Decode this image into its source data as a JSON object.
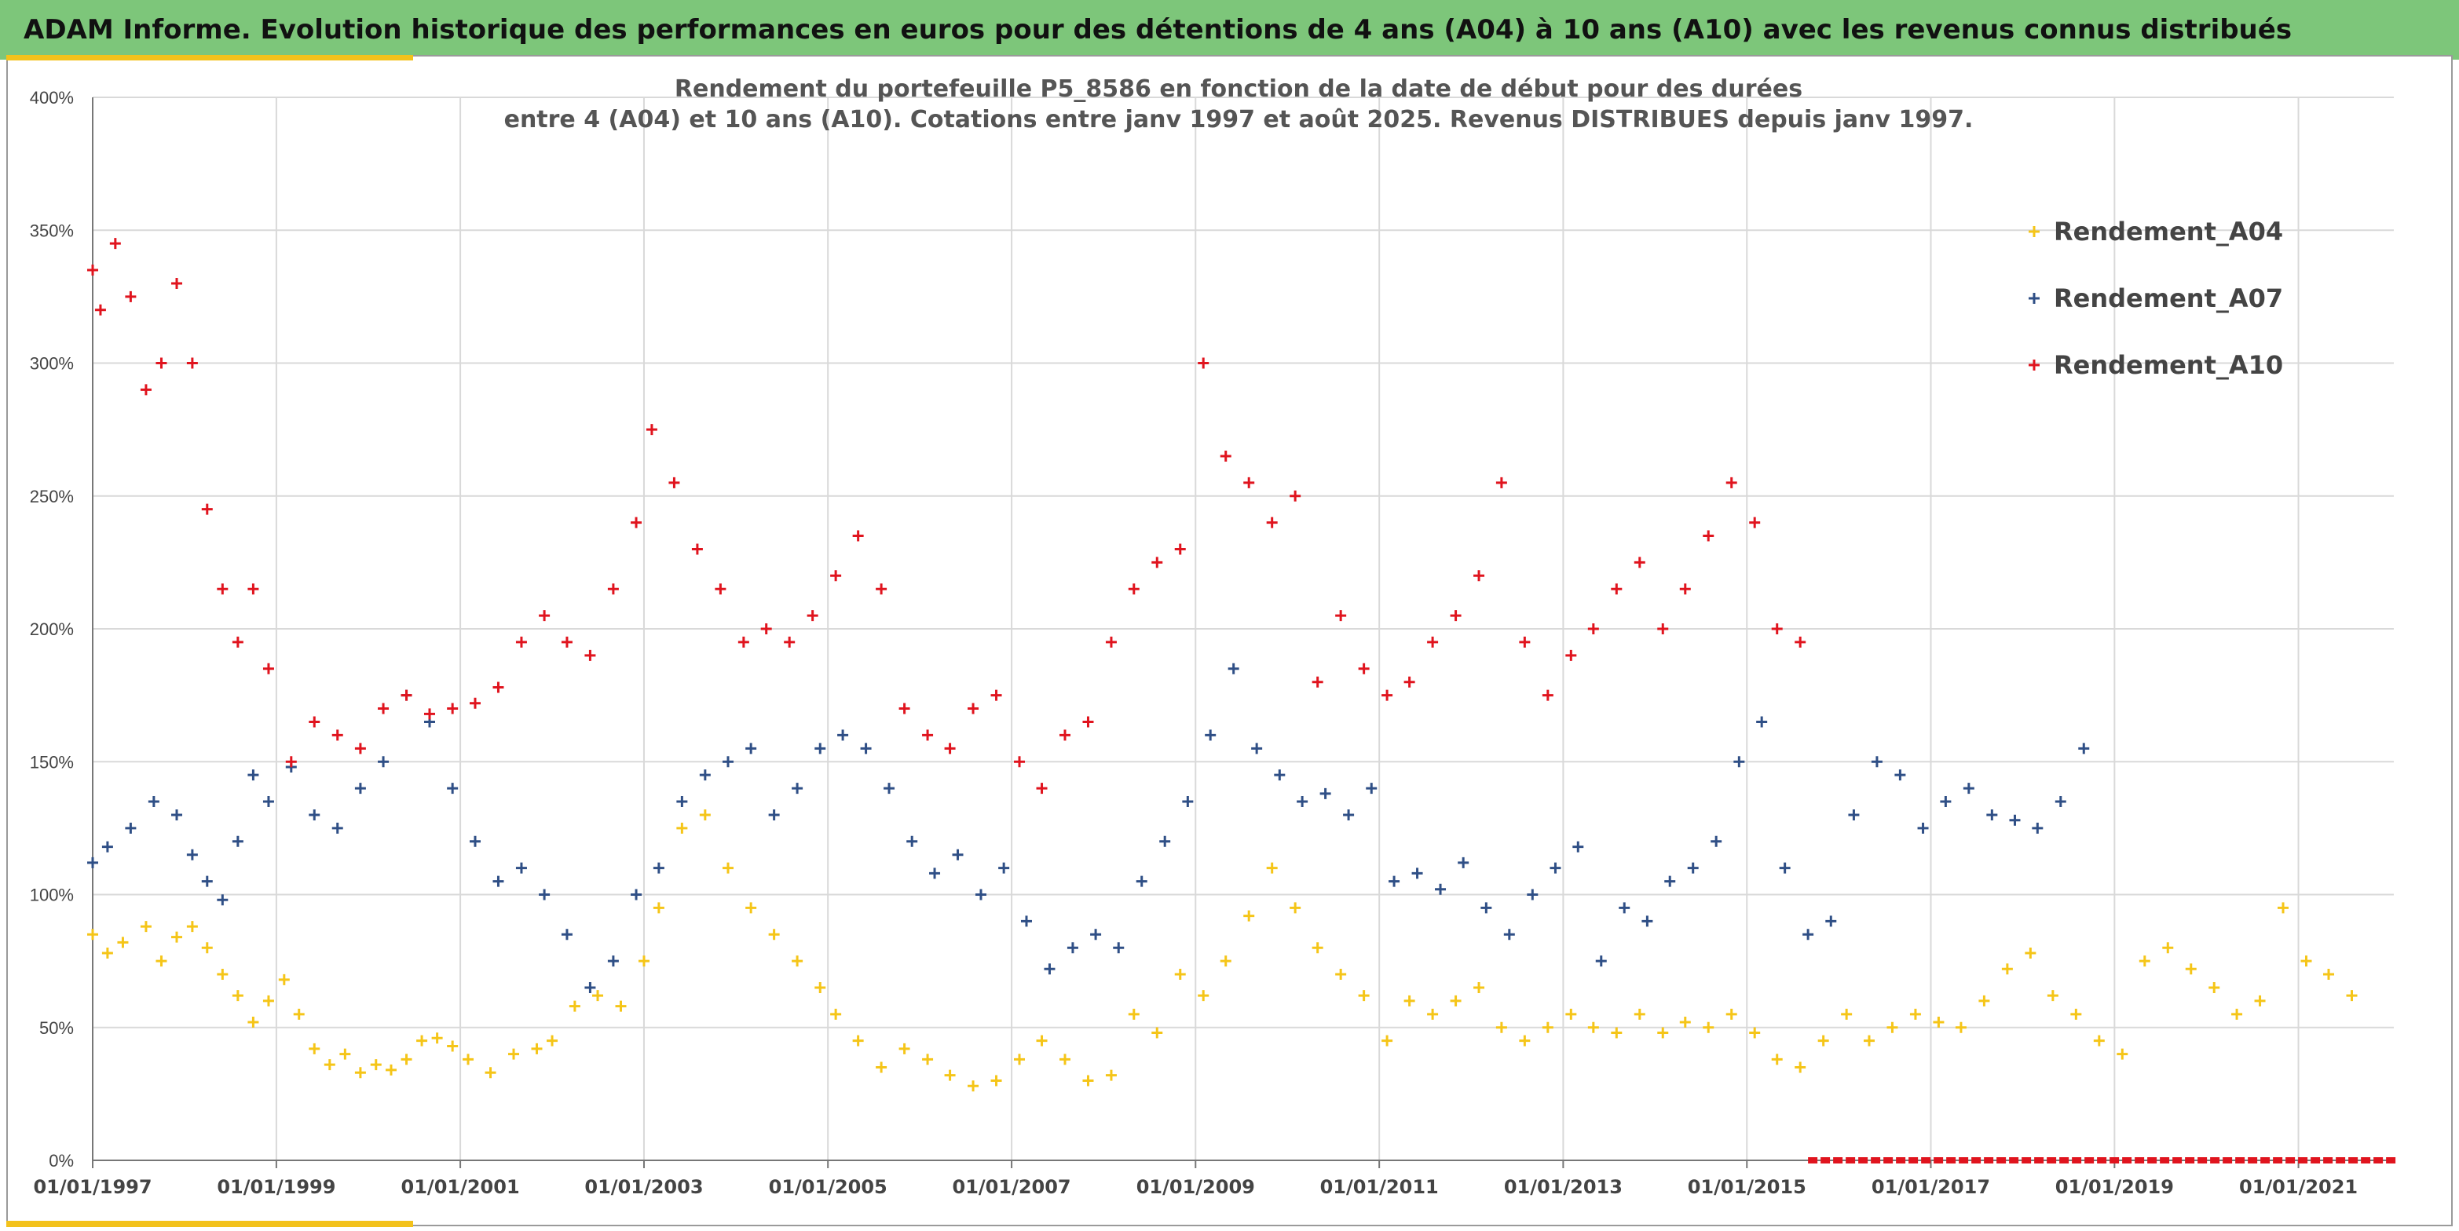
{
  "banner": {
    "title": "ADAM Informe. Evolution historique des performances en euros pour des détentions de 4 ans (A04) à 10 ans (A10) avec les revenus connus distribués"
  },
  "colors": {
    "banner": "#7dc67a",
    "accent": "#f3c21b",
    "A04": "#f5c518",
    "A07": "#2f4f86",
    "A10": "#e0141e",
    "grid": "#d9d9d9"
  },
  "chart_data": {
    "type": "scatter",
    "marker": "plus",
    "title_lines": [
      "Rendement du portefeuille P5_8586 en fonction de la date de début pour des durées",
      "entre 4 (A04) et 10 ans (A10). Cotations entre janv 1997 et août 2025. Revenus DISTRIBUES depuis janv 1997."
    ],
    "xlabel": "",
    "ylabel": "",
    "x_range": [
      "1997-01-01",
      "2022-01-15"
    ],
    "y_range": [
      0,
      400
    ],
    "y_ticks": [
      0,
      50,
      100,
      150,
      200,
      250,
      300,
      350,
      400
    ],
    "y_tick_labels": [
      "0%",
      "50%",
      "100%",
      "150%",
      "200%",
      "250%",
      "300%",
      "350%",
      "400%"
    ],
    "x_ticks": [
      "1997-01-01",
      "1999-01-01",
      "2001-01-01",
      "2003-01-01",
      "2005-01-01",
      "2007-01-01",
      "2009-01-01",
      "2011-01-01",
      "2013-01-01",
      "2015-01-01",
      "2017-01-01",
      "2019-01-01",
      "2021-01-01"
    ],
    "x_tick_labels": [
      "01/01/1997",
      "01/01/1999",
      "01/01/2001",
      "01/01/2003",
      "01/01/2005",
      "01/01/2007",
      "01/01/2009",
      "01/01/2011",
      "01/01/2013",
      "01/01/2015",
      "01/01/2017",
      "01/01/2019",
      "01/01/2021"
    ],
    "grid": true,
    "legend_position": "top-right",
    "series": [
      {
        "name": "Rendement_A04",
        "x": [
          "1997-01-01",
          "1997-03-01",
          "1997-05-01",
          "1997-08-01",
          "1997-10-01",
          "1997-12-01",
          "1998-02-01",
          "1998-04-01",
          "1998-06-01",
          "1998-08-01",
          "1998-10-01",
          "1998-12-01",
          "1999-02-01",
          "1999-04-01",
          "1999-06-01",
          "1999-08-01",
          "1999-10-01",
          "1999-12-01",
          "2000-02-01",
          "2000-04-01",
          "2000-06-01",
          "2000-08-01",
          "2000-10-01",
          "2000-12-01",
          "2001-02-01",
          "2001-05-01",
          "2001-08-01",
          "2001-11-01",
          "2002-01-01",
          "2002-04-01",
          "2002-07-01",
          "2002-10-01",
          "2003-01-01",
          "2003-03-01",
          "2003-06-01",
          "2003-09-01",
          "2003-12-01",
          "2004-03-01",
          "2004-06-01",
          "2004-09-01",
          "2004-12-01",
          "2005-02-01",
          "2005-05-01",
          "2005-08-01",
          "2005-11-01",
          "2006-02-01",
          "2006-05-01",
          "2006-08-01",
          "2006-11-01",
          "2007-02-01",
          "2007-05-01",
          "2007-08-01",
          "2007-11-01",
          "2008-02-01",
          "2008-05-01",
          "2008-08-01",
          "2008-11-01",
          "2009-02-01",
          "2009-05-01",
          "2009-08-01",
          "2009-11-01",
          "2010-02-01",
          "2010-05-01",
          "2010-08-01",
          "2010-11-01",
          "2011-02-01",
          "2011-05-01",
          "2011-08-01",
          "2011-11-01",
          "2012-02-01",
          "2012-05-01",
          "2012-08-01",
          "2012-11-01",
          "2013-02-01",
          "2013-05-01",
          "2013-08-01",
          "2013-11-01",
          "2014-02-01",
          "2014-05-01",
          "2014-08-01",
          "2014-11-01",
          "2015-02-01",
          "2015-05-01",
          "2015-08-01",
          "2015-11-01",
          "2016-02-01",
          "2016-05-01",
          "2016-08-01",
          "2016-11-01",
          "2017-02-01",
          "2017-05-01",
          "2017-08-01",
          "2017-11-01",
          "2018-02-01",
          "2018-05-01",
          "2018-08-01",
          "2018-11-01",
          "2019-02-01",
          "2019-05-01",
          "2019-08-01",
          "2019-11-01",
          "2020-02-01",
          "2020-05-01",
          "2020-08-01",
          "2020-11-01",
          "2021-02-01",
          "2021-05-01",
          "2021-08-01"
        ],
        "y": [
          85,
          78,
          82,
          88,
          75,
          84,
          88,
          80,
          70,
          62,
          52,
          60,
          68,
          55,
          42,
          36,
          40,
          33,
          36,
          34,
          38,
          45,
          46,
          43,
          38,
          33,
          40,
          42,
          45,
          58,
          62,
          58,
          75,
          95,
          125,
          130,
          110,
          95,
          85,
          75,
          65,
          55,
          45,
          35,
          42,
          38,
          32,
          28,
          30,
          38,
          45,
          38,
          30,
          32,
          55,
          48,
          70,
          62,
          75,
          92,
          110,
          95,
          80,
          70,
          62,
          45,
          60,
          55,
          60,
          65,
          50,
          45,
          50,
          55,
          50,
          48,
          55,
          48,
          52,
          50,
          55,
          48,
          38,
          35,
          45,
          55,
          45,
          50,
          55,
          52,
          50,
          60,
          72,
          78,
          62,
          55,
          45,
          40,
          75,
          80,
          72,
          65,
          55,
          60,
          95,
          75,
          70,
          62
        ]
      },
      {
        "name": "Rendement_A07",
        "x": [
          "1997-01-01",
          "1997-03-01",
          "1997-06-01",
          "1997-09-01",
          "1997-12-01",
          "1998-02-01",
          "1998-04-01",
          "1998-06-01",
          "1998-08-01",
          "1998-10-01",
          "1998-12-01",
          "1999-03-01",
          "1999-06-01",
          "1999-09-01",
          "1999-12-01",
          "2000-03-01",
          "2000-06-01",
          "2000-09-01",
          "2000-12-01",
          "2001-03-01",
          "2001-06-01",
          "2001-09-01",
          "2001-12-01",
          "2002-03-01",
          "2002-06-01",
          "2002-09-01",
          "2002-12-01",
          "2003-03-01",
          "2003-06-01",
          "2003-09-01",
          "2003-12-01",
          "2004-03-01",
          "2004-06-01",
          "2004-09-01",
          "2004-12-01",
          "2005-03-01",
          "2005-06-01",
          "2005-09-01",
          "2005-12-01",
          "2006-03-01",
          "2006-06-01",
          "2006-09-01",
          "2006-12-01",
          "2007-03-01",
          "2007-06-01",
          "2007-09-01",
          "2007-12-01",
          "2008-03-01",
          "2008-06-01",
          "2008-09-01",
          "2008-12-01",
          "2009-03-01",
          "2009-06-01",
          "2009-09-01",
          "2009-12-01",
          "2010-03-01",
          "2010-06-01",
          "2010-09-01",
          "2010-12-01",
          "2011-03-01",
          "2011-06-01",
          "2011-09-01",
          "2011-12-01",
          "2012-03-01",
          "2012-06-01",
          "2012-09-01",
          "2012-12-01",
          "2013-03-01",
          "2013-06-01",
          "2013-09-01",
          "2013-12-01",
          "2014-03-01",
          "2014-06-01",
          "2014-09-01",
          "2014-12-01",
          "2015-03-01",
          "2015-06-01",
          "2015-09-01",
          "2015-12-01",
          "2016-03-01",
          "2016-06-01",
          "2016-09-01",
          "2016-12-01",
          "2017-03-01",
          "2017-06-01",
          "2017-09-01",
          "2017-12-01",
          "2018-03-01",
          "2018-06-01",
          "2018-09-01"
        ],
        "y": [
          112,
          118,
          125,
          135,
          130,
          115,
          105,
          98,
          120,
          145,
          135,
          148,
          130,
          125,
          140,
          150,
          175,
          165,
          140,
          120,
          105,
          110,
          100,
          85,
          65,
          75,
          100,
          110,
          135,
          145,
          150,
          155,
          130,
          140,
          155,
          160,
          155,
          140,
          120,
          108,
          115,
          100,
          110,
          90,
          72,
          80,
          85,
          80,
          105,
          120,
          135,
          160,
          185,
          155,
          145,
          135,
          138,
          130,
          140,
          105,
          108,
          102,
          112,
          95,
          85,
          100,
          110,
          118,
          75,
          95,
          90,
          105,
          110,
          120,
          150,
          165,
          110,
          85,
          90,
          130,
          150,
          145,
          125,
          135,
          140,
          130,
          128,
          125,
          135,
          155
        ]
      },
      {
        "name": "Rendement_A10",
        "x": [
          "1997-01-01",
          "1997-02-01",
          "1997-04-01",
          "1997-06-01",
          "1997-08-01",
          "1997-10-01",
          "1997-12-01",
          "1998-02-01",
          "1998-04-01",
          "1998-06-01",
          "1998-08-01",
          "1998-10-01",
          "1998-12-01",
          "1999-03-01",
          "1999-06-01",
          "1999-09-01",
          "1999-12-01",
          "2000-03-01",
          "2000-06-01",
          "2000-09-01",
          "2000-12-01",
          "2001-03-01",
          "2001-06-01",
          "2001-09-01",
          "2001-12-01",
          "2002-03-01",
          "2002-06-01",
          "2002-09-01",
          "2002-12-01",
          "2003-02-01",
          "2003-05-01",
          "2003-08-01",
          "2003-11-01",
          "2004-02-01",
          "2004-05-01",
          "2004-08-01",
          "2004-11-01",
          "2005-02-01",
          "2005-05-01",
          "2005-08-01",
          "2005-11-01",
          "2006-02-01",
          "2006-05-01",
          "2006-08-01",
          "2006-11-01",
          "2007-02-01",
          "2007-05-01",
          "2007-08-01",
          "2007-11-01",
          "2008-02-01",
          "2008-05-01",
          "2008-08-01",
          "2008-11-01",
          "2009-02-01",
          "2009-05-01",
          "2009-08-01",
          "2009-11-01",
          "2010-02-01",
          "2010-05-01",
          "2010-08-01",
          "2010-11-01",
          "2011-02-01",
          "2011-05-01",
          "2011-08-01",
          "2011-11-01",
          "2012-02-01",
          "2012-05-01",
          "2012-08-01",
          "2012-11-01",
          "2013-02-01",
          "2013-05-01",
          "2013-08-01",
          "2013-11-01",
          "2014-02-01",
          "2014-05-01",
          "2014-08-01",
          "2014-11-01",
          "2015-02-01",
          "2015-05-01",
          "2015-08-01"
        ],
        "y": [
          335,
          320,
          345,
          325,
          290,
          300,
          330,
          300,
          245,
          215,
          195,
          215,
          185,
          150,
          165,
          160,
          155,
          170,
          175,
          168,
          170,
          172,
          178,
          195,
          205,
          195,
          190,
          215,
          240,
          275,
          255,
          230,
          215,
          195,
          200,
          195,
          205,
          220,
          235,
          215,
          170,
          160,
          155,
          170,
          175,
          150,
          140,
          160,
          165,
          195,
          215,
          225,
          230,
          300,
          265,
          255,
          240,
          250,
          180,
          205,
          185,
          175,
          180,
          195,
          205,
          220,
          255,
          195,
          175,
          190,
          200,
          215,
          225,
          200,
          215,
          235,
          255,
          240,
          200,
          195
        ]
      },
      {
        "name": "",
        "style": "dashes-on-axis",
        "x_start": "2015-09-01",
        "x_end": "2022-01-15",
        "y": 0
      }
    ]
  }
}
